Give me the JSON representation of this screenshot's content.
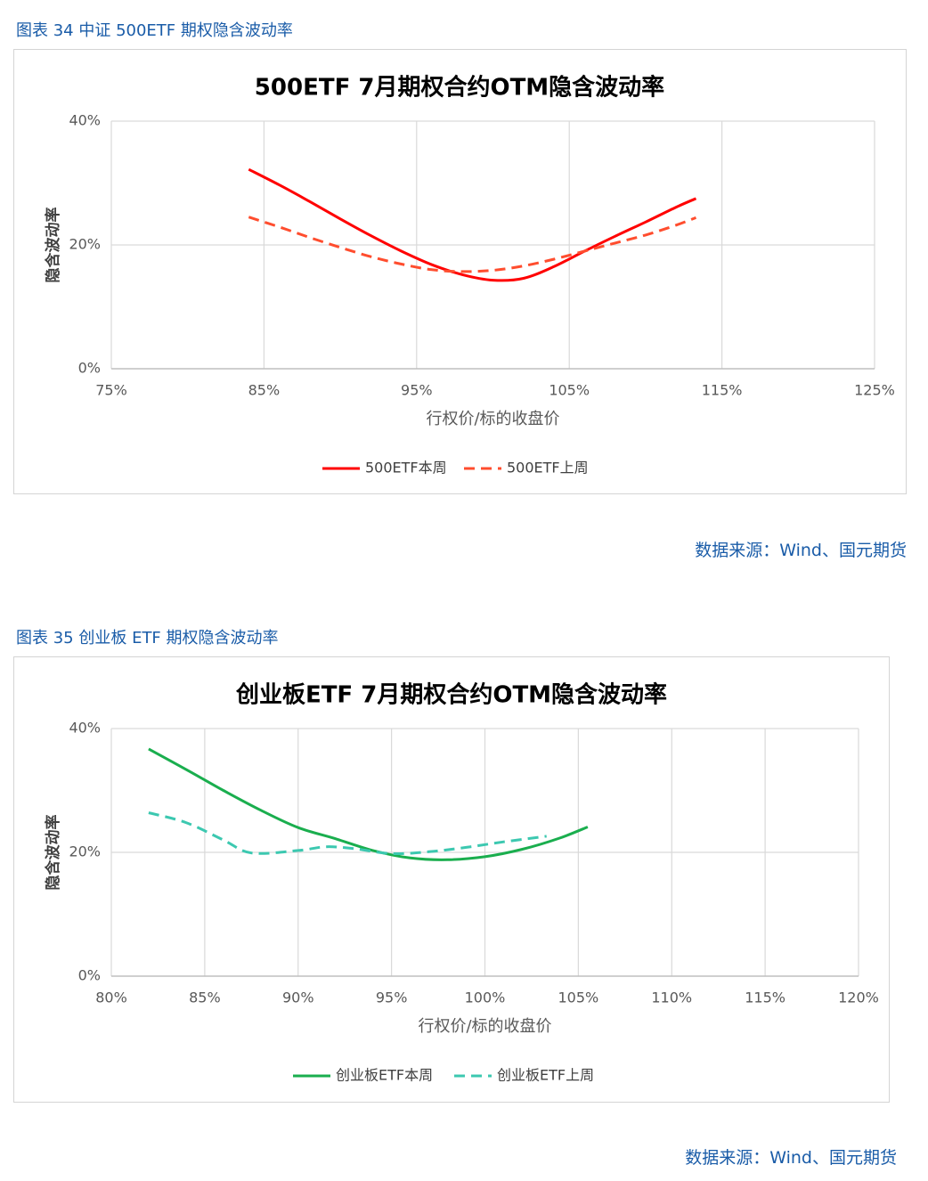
{
  "charts": [
    {
      "caption": "图表 34  中证 500ETF 期权隐含波动率",
      "source": "数据来源：Wind、国元期货",
      "chart_data": {
        "type": "line",
        "title": "500ETF  7月期权合约OTM隐含波动率",
        "xlabel": "行权价/标的收盘价",
        "ylabel": "隐含波动率",
        "xlim": [
          75,
          125
        ],
        "ylim": [
          0,
          40
        ],
        "x_ticks": [
          75,
          85,
          95,
          105,
          115,
          125
        ],
        "x_tick_labels": [
          "75%",
          "85%",
          "95%",
          "105%",
          "115%",
          "125%"
        ],
        "y_ticks": [
          0,
          20,
          40
        ],
        "y_tick_labels": [
          "0%",
          "20%",
          "40%"
        ],
        "grid": true,
        "legend": "bottom",
        "series": [
          {
            "name": "500ETF本周",
            "style": "solid",
            "color": "#ff0000",
            "x": [
              84,
              86,
              88,
              90,
              92,
              94,
              96,
              98,
              100,
              102,
              104,
              106,
              108,
              110,
              112,
              113.3
            ],
            "y": [
              32.2,
              29.7,
              27.0,
              24.2,
              21.5,
              19.0,
              16.8,
              15.2,
              14.3,
              14.6,
              16.5,
              19.0,
              21.4,
              23.7,
              26.1,
              27.5
            ]
          },
          {
            "name": "500ETF上周",
            "style": "dashed",
            "color": "#ff4d2e",
            "x": [
              84,
              86,
              88,
              90,
              92,
              94,
              96,
              98,
              100,
              102,
              104,
              106,
              108,
              110,
              112,
              113.3
            ],
            "y": [
              24.5,
              22.9,
              21.2,
              19.6,
              18.1,
              16.9,
              16.0,
              15.7,
              15.9,
              16.6,
              17.7,
              19.0,
              20.3,
              21.6,
              23.2,
              24.4
            ]
          }
        ]
      }
    },
    {
      "caption": "图表 35  创业板 ETF 期权隐含波动率",
      "source": "数据来源：Wind、国元期货",
      "chart_data": {
        "type": "line",
        "title": "创业板ETF  7月期权合约OTM隐含波动率",
        "xlabel": "行权价/标的收盘价",
        "ylabel": "隐含波动率",
        "xlim": [
          80,
          120
        ],
        "ylim": [
          0,
          40
        ],
        "x_ticks": [
          80,
          85,
          90,
          95,
          100,
          105,
          110,
          115,
          120
        ],
        "x_tick_labels": [
          "80%",
          "85%",
          "90%",
          "95%",
          "100%",
          "105%",
          "110%",
          "115%",
          "120%"
        ],
        "y_ticks": [
          0,
          20,
          40
        ],
        "y_tick_labels": [
          "0%",
          "20%",
          "40%"
        ],
        "grid": true,
        "legend": "bottom",
        "series": [
          {
            "name": "创业板ETF本周",
            "style": "solid",
            "color": "#1aae4e",
            "x": [
              82,
              84,
              86,
              88,
              90,
              92,
              94,
              96,
              98,
              100,
              102,
              104,
              105.5
            ],
            "y": [
              36.7,
              33.4,
              30.0,
              26.8,
              24.0,
              22.2,
              20.3,
              19.1,
              18.8,
              19.3,
              20.5,
              22.3,
              24.1
            ]
          },
          {
            "name": "创业板ETF上周",
            "style": "dashed",
            "color": "#3cc8b0",
            "x": [
              82,
              84,
              86,
              87.5,
              90,
              91.5,
              93,
              95,
              97,
              99,
              101,
              103.3
            ],
            "y": [
              26.4,
              24.8,
              22.0,
              19.9,
              20.3,
              20.9,
              20.6,
              19.8,
              20.1,
              20.8,
              21.7,
              22.6
            ]
          }
        ]
      }
    }
  ]
}
